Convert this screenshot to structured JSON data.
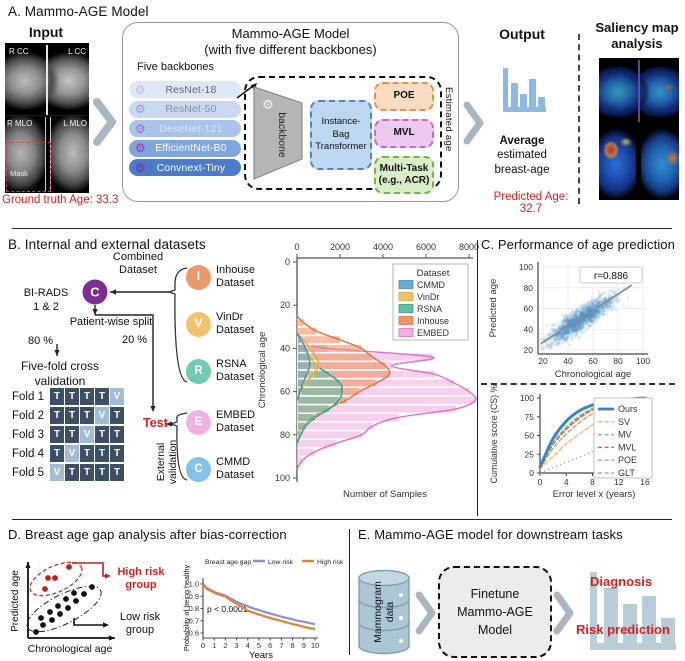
{
  "colors": {
    "red": "#d6201f",
    "chevron": "#a9b5bf",
    "purple_node": "#7b2e94",
    "fold_train": "#3d4f63",
    "fold_val": "#a3bcd4"
  },
  "panel_a": {
    "title": "A. Mammo-AGE Model",
    "input": {
      "label": "Input",
      "views": [
        "R CC",
        "L CC",
        "R MLO",
        "L MLO"
      ],
      "mask_label": "Mask",
      "ground_truth": "Ground truth Age: 33.3"
    },
    "model": {
      "title": "Mammo-AGE Model",
      "subtitle": "(with five different backbones)",
      "backbones_label": "Five backbones",
      "backbones": [
        {
          "name": "ResNet-18",
          "pill": "#dfe8f6",
          "text": "#5a6b80",
          "gear": "#c9bce4"
        },
        {
          "name": "ResNet-50",
          "pill": "#c9d9f0",
          "text": "#7d8fa6",
          "gear": "#a98fd4"
        },
        {
          "name": "DeseNet-121",
          "pill": "#abc3ea",
          "text": "#dfe8f8",
          "gear": "#b05ecf"
        },
        {
          "name": "EfficientNet-B0",
          "pill": "#7fa5dc",
          "text": "#ffffff",
          "gear": "#8d3cb4"
        },
        {
          "name": "Convnext-Tiny",
          "pill": "#4a7cc9",
          "text": "#ffffff",
          "gear": "#7a2aa2"
        }
      ],
      "backbone_block_label": "backbone",
      "transformer_label": "Instance-Bag Transformer",
      "heads": [
        {
          "label": "POE",
          "fill": "#f9dcc2",
          "border": "#e2914e"
        },
        {
          "label": "MVL",
          "fill": "#edc9ed",
          "border": "#c767c7"
        },
        {
          "label": "Multi-Task (e.g., ACR)",
          "fill": "#d9efc7",
          "border": "#77b050"
        }
      ],
      "estimated_age_label": "Estimated age"
    },
    "output": {
      "label": "Output",
      "caption_line1": "Average",
      "caption_line2": "estimated",
      "caption_line3": "breast-age",
      "predicted": "Predicted Age: 32.7"
    },
    "saliency_title": "Saliency map analysis"
  },
  "panel_b": {
    "title": "B. Internal and external datasets",
    "combined_label": "Combined\nDataset",
    "node_c": "C",
    "birads_label": "BI-RADS\n1 & 2",
    "split_label": "Patient-wise split",
    "pct_train": "80 %",
    "pct_test": "20 %",
    "cv_label": "Five-fold cross\nvalidation",
    "folds": [
      {
        "label": "Fold 1",
        "cells": [
          "T",
          "T",
          "T",
          "T",
          "V"
        ]
      },
      {
        "label": "Fold 2",
        "cells": [
          "T",
          "T",
          "T",
          "V",
          "T"
        ]
      },
      {
        "label": "Fold 3",
        "cells": [
          "T",
          "T",
          "V",
          "T",
          "T"
        ]
      },
      {
        "label": "Fold 4",
        "cells": [
          "T",
          "V",
          "T",
          "T",
          "T"
        ]
      },
      {
        "label": "Fold 5",
        "cells": [
          "V",
          "T",
          "T",
          "T",
          "T"
        ]
      }
    ],
    "test_label": "Test",
    "external_label": "External\nvalidation",
    "datasets": [
      {
        "letter": "I",
        "name": "Inhouse\nDataset",
        "color": "#e89a6c"
      },
      {
        "letter": "V",
        "name": "VinDr\nDataset",
        "color": "#f0c36e"
      },
      {
        "letter": "R",
        "name": "RSNA\nDataset",
        "color": "#72cbb0"
      },
      {
        "letter": "E",
        "name": "EMBED\nDataset",
        "color": "#f0b2e2"
      },
      {
        "letter": "C",
        "name": "CMMD\nDataset",
        "color": "#84c2e8"
      }
    ]
  },
  "panel_c": {
    "title": "C. Performance of age prediction"
  },
  "panel_d": {
    "title": "D. Breast age gap analysis after bias-correction",
    "sketch": {
      "ylabel": "Predicted age",
      "xlabel": "Chronological age",
      "high_label": "High risk\ngroup",
      "low_label": "Low risk\ngroup"
    }
  },
  "panel_e": {
    "title": "E. Mammo-AGE model for downstream tasks",
    "data_label": "Mammogram\ndata",
    "finetune_label": "Finetune Mammo-AGE Model",
    "diagnosis_label": "Diagnosis",
    "risk_label": "Risk prediction"
  },
  "chart_data": [
    {
      "id": "age_distribution",
      "type": "bar",
      "orientation": "horizontal",
      "xlabel": "Number of Samples",
      "ylabel": "Chronological age",
      "x_ticks": [
        0,
        2000,
        4000,
        6000,
        8000
      ],
      "y_ticks": [
        0,
        20,
        40,
        60,
        80,
        100
      ],
      "legend_title": "Dataset",
      "bin_width": 4,
      "series": [
        {
          "name": "CMMD",
          "fill": "#6fa8cf",
          "line": "#4a87b8",
          "bins": [
            [
              34,
              200
            ],
            [
              38,
              400
            ],
            [
              42,
              550
            ],
            [
              46,
              600
            ],
            [
              50,
              450
            ],
            [
              54,
              280
            ],
            [
              58,
              150
            ]
          ]
        },
        {
          "name": "VinDr",
          "fill": "#ecc06c",
          "line": "#dfa63f",
          "bins": [
            [
              34,
              300
            ],
            [
              38,
              600
            ],
            [
              42,
              900
            ],
            [
              46,
              1000
            ],
            [
              50,
              750
            ],
            [
              54,
              400
            ],
            [
              58,
              180
            ]
          ]
        },
        {
          "name": "RSNA",
          "fill": "#66bfa3",
          "line": "#2e9e82",
          "bins": [
            [
              38,
              250
            ],
            [
              42,
              600
            ],
            [
              46,
              900
            ],
            [
              50,
              1500
            ],
            [
              54,
              2000
            ],
            [
              58,
              2100
            ],
            [
              62,
              1950
            ],
            [
              66,
              1500
            ],
            [
              70,
              850
            ],
            [
              74,
              400
            ],
            [
              78,
              180
            ]
          ]
        },
        {
          "name": "Inhouse",
          "fill": "#ec9468",
          "line": "#e0713a",
          "bins": [
            [
              26,
              300
            ],
            [
              30,
              900
            ],
            [
              34,
              2000
            ],
            [
              38,
              3000
            ],
            [
              42,
              3500
            ],
            [
              46,
              4100
            ],
            [
              50,
              4300
            ],
            [
              54,
              3700
            ],
            [
              58,
              2900
            ],
            [
              62,
              2300
            ],
            [
              66,
              1400
            ],
            [
              70,
              700
            ],
            [
              74,
              300
            ]
          ]
        },
        {
          "name": "EMBED",
          "fill": "#efb3e2",
          "line": "#d970c1",
          "bins": [
            [
              38,
              1400
            ],
            [
              42,
              6300
            ],
            [
              46,
              4400
            ],
            [
              50,
              6400
            ],
            [
              54,
              7300
            ],
            [
              58,
              8000
            ],
            [
              62,
              8300
            ],
            [
              66,
              7400
            ],
            [
              70,
              4700
            ],
            [
              74,
              3500
            ],
            [
              78,
              3000
            ],
            [
              82,
              1800
            ],
            [
              86,
              800
            ],
            [
              90,
              250
            ]
          ]
        }
      ],
      "draw_order": [
        "EMBED",
        "Inhouse",
        "RSNA",
        "VinDr",
        "CMMD"
      ]
    },
    {
      "id": "age_scatter",
      "type": "scatter",
      "xlabel": "Chronological age",
      "ylabel": "Predicted age",
      "ticks": [
        20,
        40,
        60,
        80,
        100
      ],
      "xlim": [
        15,
        102
      ],
      "ylim": [
        15,
        102
      ],
      "annotation": "r=0.886",
      "point_color": "#4f94cc",
      "fit_line": {
        "x1": 18,
        "y1": 26,
        "x2": 91,
        "y2": 82.5
      },
      "cloud": {
        "n": 1500,
        "x_mean": 50,
        "x_sd": 13,
        "slope": 0.76,
        "intercept": 11.5,
        "noise_sd": 5.5,
        "seed": 42
      }
    },
    {
      "id": "cumulative_score",
      "type": "line",
      "xlabel": "Error level x (years)",
      "ylabel": "Cumulative score (CS) %",
      "x": [
        0,
        2,
        4,
        6,
        8,
        10,
        12,
        14,
        16
      ],
      "x_ticks": [
        0,
        4,
        8,
        12,
        16
      ],
      "y_ticks": [
        0,
        25,
        50,
        75,
        100
      ],
      "series": [
        {
          "name": "Ours",
          "color": "#3b83c4",
          "style": "solid",
          "width": 3,
          "values": [
            8,
            46,
            69,
            83,
            90.5,
            94.5,
            97,
            98.8,
            100
          ]
        },
        {
          "name": "SV",
          "color": "#f5b87e",
          "style": "dashed",
          "width": 1.5,
          "values": [
            6,
            22,
            39,
            52,
            64,
            74,
            83,
            91,
            97
          ]
        },
        {
          "name": "MV",
          "color": "#74c476",
          "style": "dashed",
          "width": 1.5,
          "values": [
            7,
            40,
            61,
            76,
            86,
            92,
            96,
            98,
            99.5
          ]
        },
        {
          "name": "MVL",
          "color": "#e15b5b",
          "style": "dashed",
          "width": 1.5,
          "values": [
            7,
            38,
            58,
            73,
            84,
            90,
            94.5,
            97.5,
            99
          ]
        },
        {
          "name": "POE",
          "color": "#b3a3d6",
          "style": "dashed",
          "width": 1.5,
          "values": [
            7,
            39,
            60,
            75,
            85,
            91.5,
            95.5,
            98,
            99.5
          ]
        },
        {
          "name": "GLT",
          "color": "#bfa87e",
          "style": "dashed",
          "width": 1.5,
          "values": [
            6,
            33,
            52,
            67,
            79,
            87,
            92.5,
            96,
            98.5
          ]
        }
      ],
      "diagonal": {
        "x": [
          0,
          16
        ],
        "y": [
          0,
          57
        ]
      }
    },
    {
      "id": "km_curve",
      "type": "line",
      "legend_title": "Breast age gap",
      "xlabel": "Years",
      "ylabel": "Probability of being healthy",
      "annotation": "p < 0.0001",
      "x_ticks": [
        0,
        1,
        2,
        3,
        4,
        5,
        6,
        7,
        8,
        9,
        10
      ],
      "y_ticks": [
        1.0,
        0.9,
        0.8,
        0.7,
        0.6
      ],
      "series": [
        {
          "name": "Low risk",
          "color": "#8d8fc8",
          "points": [
            [
              0,
              1.0
            ],
            [
              0.3,
              0.97
            ],
            [
              0.8,
              0.945
            ],
            [
              1,
              0.935
            ],
            [
              1.5,
              0.92
            ],
            [
              2,
              0.905
            ],
            [
              2.4,
              0.885
            ],
            [
              3,
              0.855
            ],
            [
              3.5,
              0.835
            ],
            [
              4,
              0.818
            ],
            [
              4.5,
              0.8
            ],
            [
              5,
              0.788
            ],
            [
              5.5,
              0.772
            ],
            [
              6,
              0.758
            ],
            [
              6.5,
              0.747
            ],
            [
              7,
              0.733
            ],
            [
              7.5,
              0.722
            ],
            [
              8,
              0.712
            ],
            [
              8.5,
              0.7
            ],
            [
              9,
              0.692
            ],
            [
              9.5,
              0.681
            ],
            [
              10,
              0.672
            ]
          ]
        },
        {
          "name": "High risk",
          "color": "#e0813a",
          "points": [
            [
              0,
              1.0
            ],
            [
              0.3,
              0.962
            ],
            [
              0.8,
              0.94
            ],
            [
              1,
              0.928
            ],
            [
              1.5,
              0.912
            ],
            [
              2,
              0.898
            ],
            [
              2.4,
              0.872
            ],
            [
              3,
              0.838
            ],
            [
              3.5,
              0.812
            ],
            [
              4,
              0.782
            ],
            [
              4.5,
              0.766
            ],
            [
              5,
              0.752
            ],
            [
              5.5,
              0.736
            ],
            [
              6,
              0.722
            ],
            [
              6.5,
              0.71
            ],
            [
              7,
              0.697
            ],
            [
              7.5,
              0.686
            ],
            [
              8,
              0.673
            ],
            [
              8.5,
              0.663
            ],
            [
              9,
              0.651
            ],
            [
              9.5,
              0.641
            ],
            [
              10,
              0.633
            ]
          ]
        }
      ]
    }
  ]
}
